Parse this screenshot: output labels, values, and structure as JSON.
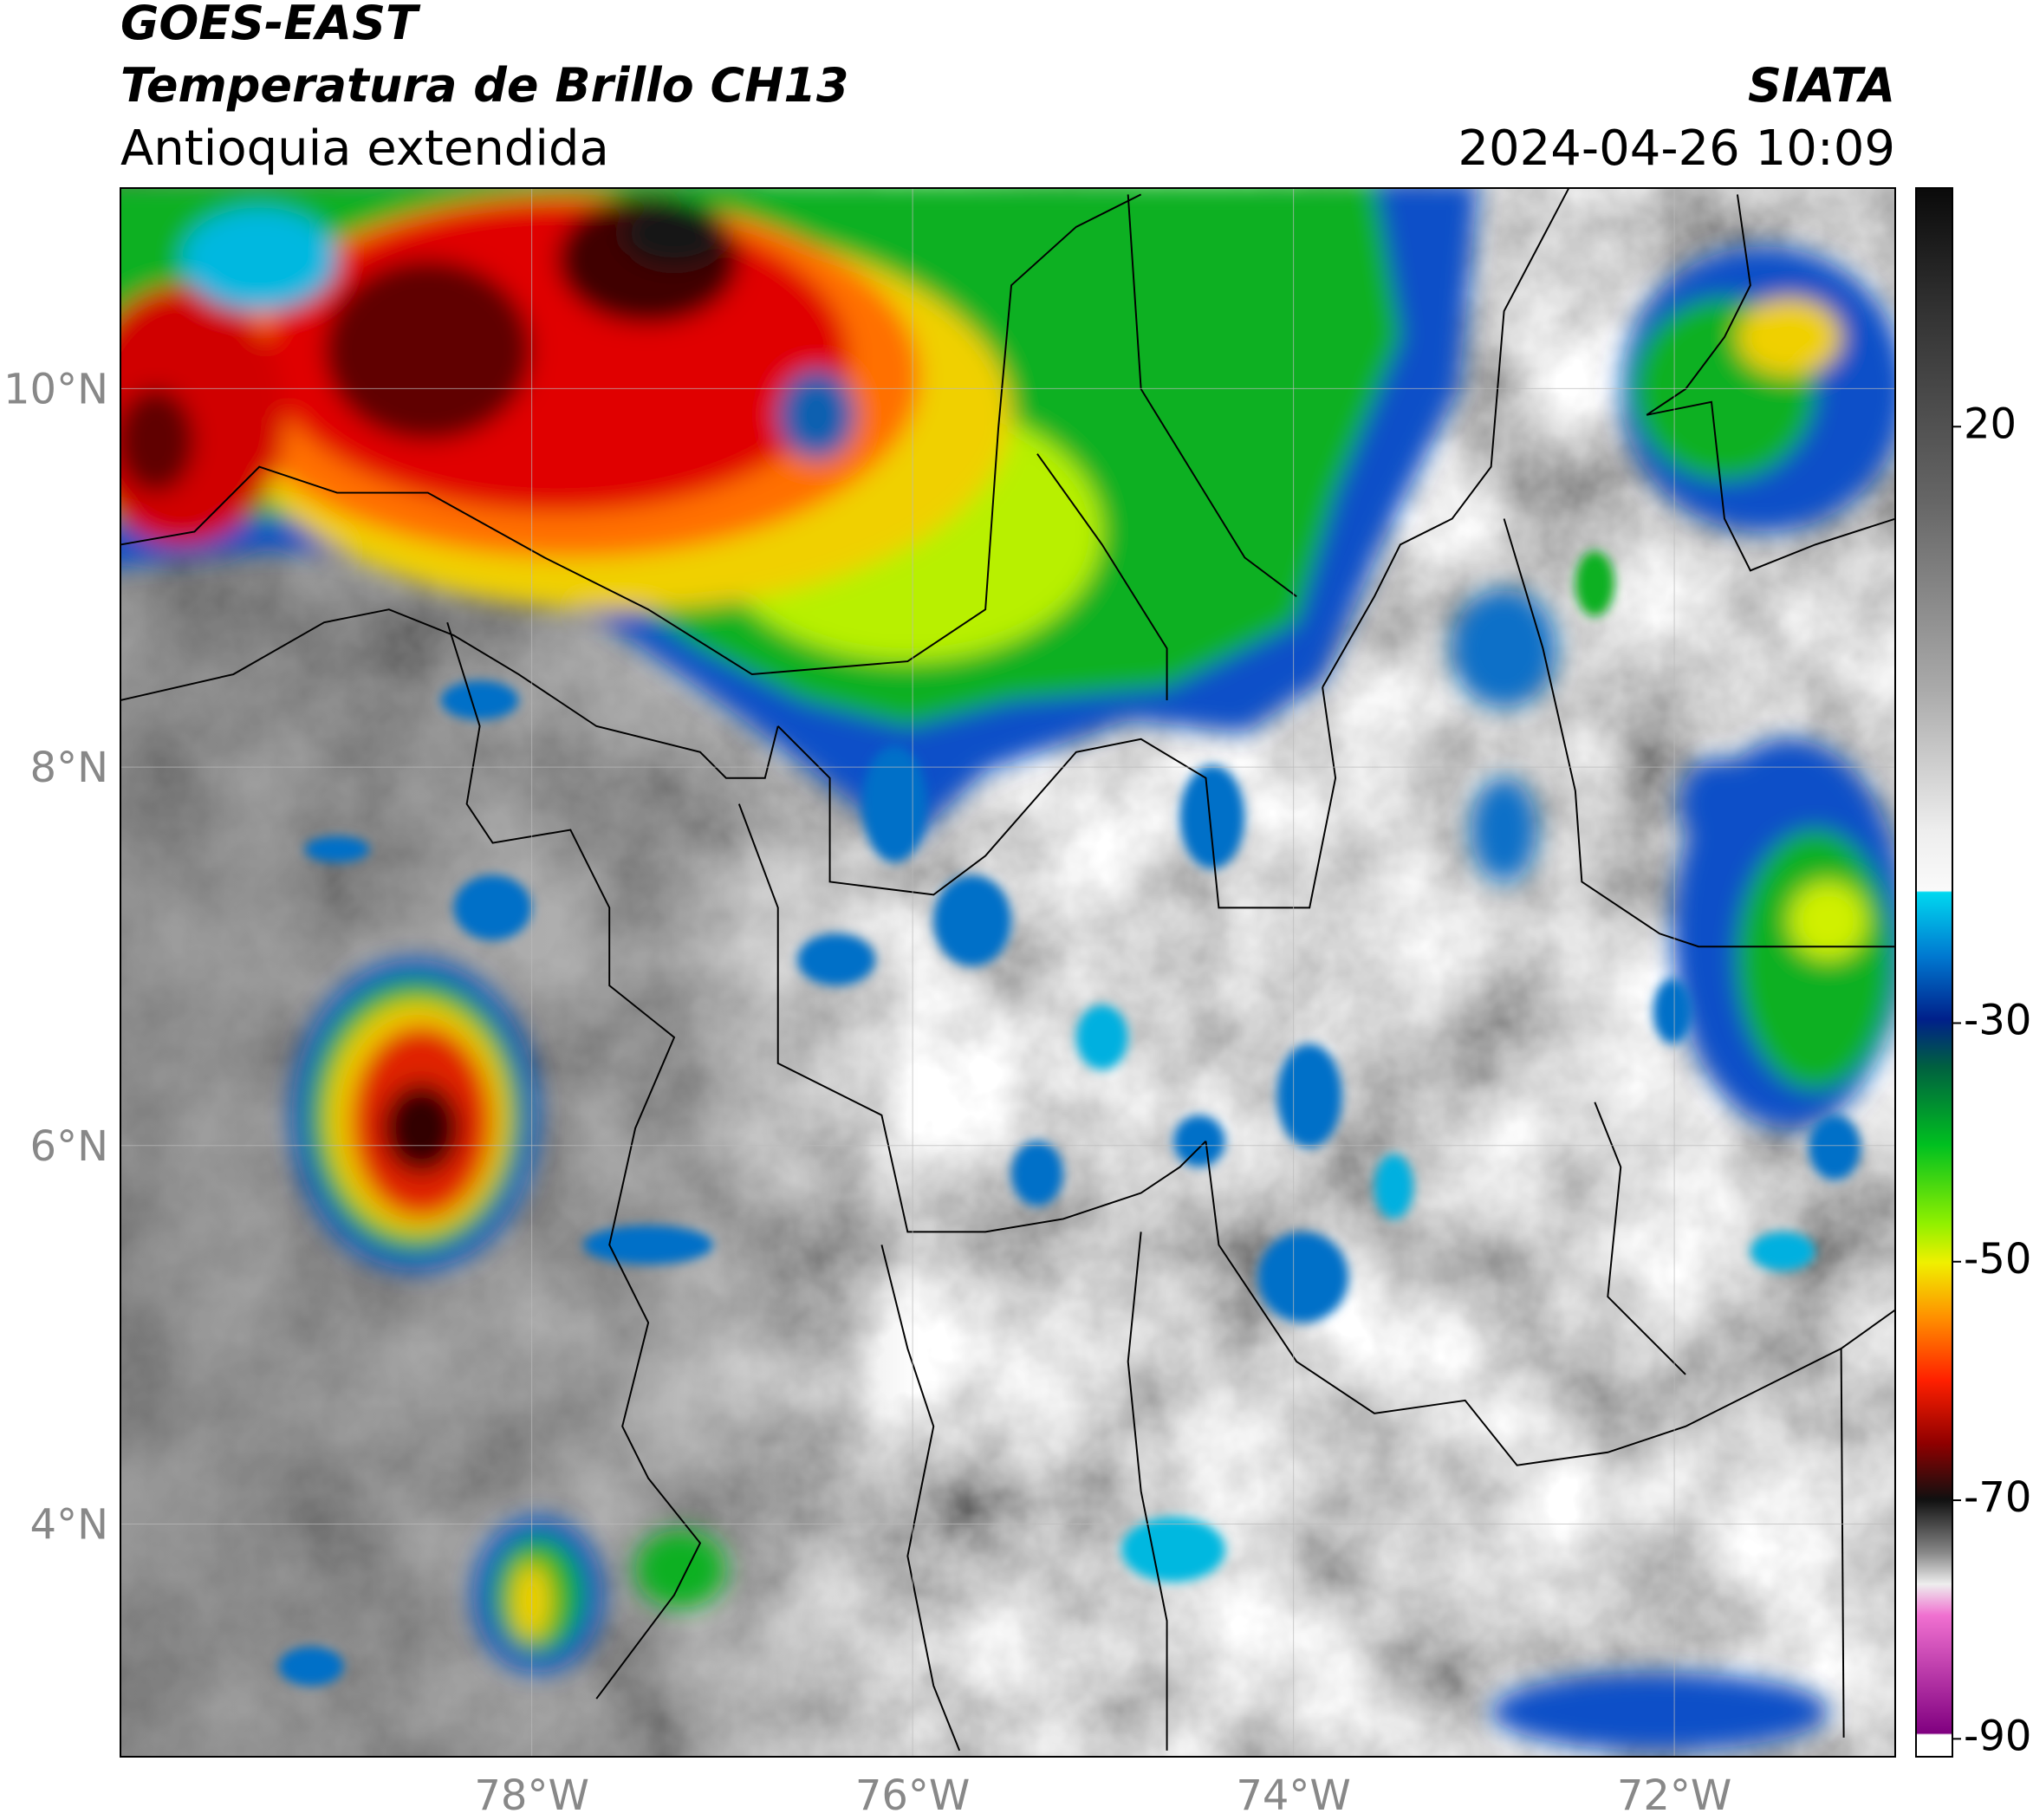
{
  "header": {
    "title": "GOES-EAST",
    "subtitle": "Temperatura de Brillo CH13",
    "region": "Antioquia extendida",
    "source": "SIATA",
    "datetime": "2024-04-26 10:09"
  },
  "map": {
    "xlim": [
      -80.16,
      -70.84
    ],
    "ylim": [
      2.77,
      11.06
    ],
    "grid": true,
    "xticks": [
      {
        "value": -78,
        "label": "78°W"
      },
      {
        "value": -76,
        "label": "76°W"
      },
      {
        "value": -74,
        "label": "74°W"
      },
      {
        "value": -72,
        "label": "72°W"
      }
    ],
    "yticks": [
      {
        "value": 10,
        "label": "10°N"
      },
      {
        "value": 8,
        "label": "8°N"
      },
      {
        "value": 6,
        "label": "6°N"
      },
      {
        "value": 4,
        "label": "4°N"
      }
    ]
  },
  "colorbar": {
    "clim": [
      -91.5,
      40
    ],
    "ticks": [
      20,
      -30,
      -50,
      -70,
      -90
    ]
  }
}
